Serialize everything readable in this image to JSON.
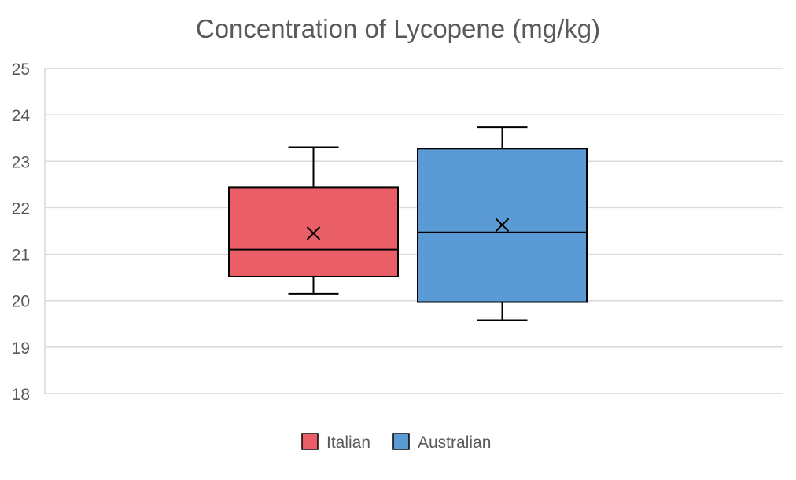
{
  "chart_data": {
    "type": "box",
    "title": "Concentration of Lycopene (mg/kg)",
    "xlabel": "",
    "ylabel": "",
    "ylim": [
      18,
      25
    ],
    "yticks": [
      18,
      19,
      20,
      21,
      22,
      23,
      24,
      25
    ],
    "grid": true,
    "legend": "bottom",
    "series": [
      {
        "name": "Italian",
        "color": "#EA5F67",
        "min": 20.15,
        "q1": 20.52,
        "median": 21.1,
        "q3": 22.44,
        "max": 23.3,
        "mean": 21.45
      },
      {
        "name": "Australian",
        "color": "#5B9BD5",
        "min": 19.58,
        "q1": 19.97,
        "median": 21.47,
        "q3": 23.27,
        "max": 23.73,
        "mean": 21.63
      }
    ]
  }
}
